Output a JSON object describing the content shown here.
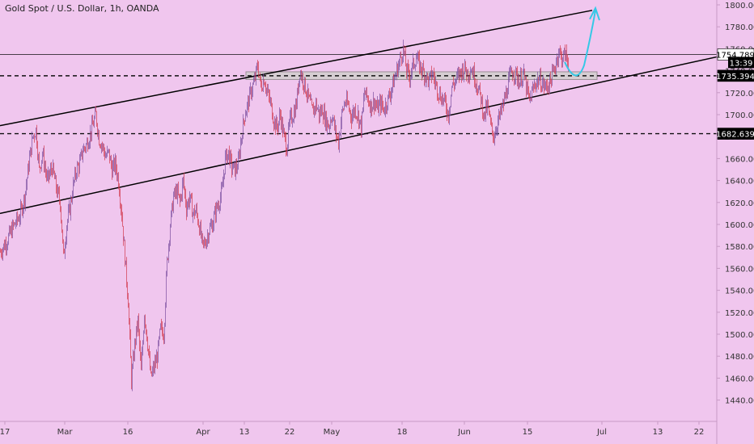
{
  "header": {
    "title": "Gold Spot / U.S. Dollar, 1h, OANDA"
  },
  "chart_data": {
    "type": "line",
    "symbol": "XAUUSD",
    "yaxis": {
      "ticks": [
        "1800.000",
        "1780.000",
        "1760.000",
        "1740.000",
        "1720.000",
        "1700.000",
        "1680.000",
        "1660.000",
        "1640.000",
        "1620.000",
        "1600.000",
        "1580.000",
        "1560.000",
        "1540.000",
        "1520.000",
        "1500.000",
        "1480.000",
        "1460.000",
        "1440.000"
      ],
      "ylim": [
        1428,
        1804
      ]
    },
    "xaxis": {
      "ticks": [
        "17",
        "Mar",
        "16",
        "Apr",
        "13",
        "22",
        "May",
        "18",
        "Jun",
        "15",
        "Jul",
        "13",
        "22"
      ]
    },
    "price_path": [
      [
        0,
        1575
      ],
      [
        8,
        1585
      ],
      [
        16,
        1598
      ],
      [
        24,
        1608
      ],
      [
        30,
        1625
      ],
      [
        36,
        1660
      ],
      [
        40,
        1680
      ],
      [
        44,
        1686
      ],
      [
        48,
        1650
      ],
      [
        52,
        1665
      ],
      [
        58,
        1640
      ],
      [
        64,
        1652
      ],
      [
        70,
        1630
      ],
      [
        74,
        1620
      ],
      [
        78,
        1570
      ],
      [
        82,
        1600
      ],
      [
        86,
        1615
      ],
      [
        90,
        1635
      ],
      [
        94,
        1650
      ],
      [
        98,
        1655
      ],
      [
        102,
        1668
      ],
      [
        106,
        1672
      ],
      [
        110,
        1680
      ],
      [
        114,
        1690
      ],
      [
        118,
        1700
      ],
      [
        122,
        1678
      ],
      [
        126,
        1672
      ],
      [
        130,
        1662
      ],
      [
        134,
        1665
      ],
      [
        138,
        1650
      ],
      [
        142,
        1655
      ],
      [
        146,
        1640
      ],
      [
        150,
        1610
      ],
      [
        154,
        1570
      ],
      [
        158,
        1530
      ],
      [
        162,
        1458
      ],
      [
        166,
        1490
      ],
      [
        170,
        1512
      ],
      [
        174,
        1465
      ],
      [
        178,
        1520
      ],
      [
        182,
        1492
      ],
      [
        186,
        1460
      ],
      [
        190,
        1470
      ],
      [
        194,
        1480
      ],
      [
        198,
        1505
      ],
      [
        202,
        1500
      ],
      [
        206,
        1565
      ],
      [
        210,
        1600
      ],
      [
        214,
        1625
      ],
      [
        218,
        1630
      ],
      [
        222,
        1620
      ],
      [
        226,
        1640
      ],
      [
        230,
        1615
      ],
      [
        234,
        1625
      ],
      [
        238,
        1610
      ],
      [
        242,
        1612
      ],
      [
        246,
        1598
      ],
      [
        250,
        1580
      ],
      [
        254,
        1585
      ],
      [
        258,
        1595
      ],
      [
        262,
        1600
      ],
      [
        266,
        1612
      ],
      [
        270,
        1620
      ],
      [
        274,
        1630
      ],
      [
        278,
        1660
      ],
      [
        282,
        1665
      ],
      [
        286,
        1652
      ],
      [
        290,
        1650
      ],
      [
        294,
        1655
      ],
      [
        298,
        1680
      ],
      [
        302,
        1700
      ],
      [
        306,
        1710
      ],
      [
        310,
        1722
      ],
      [
        314,
        1730
      ],
      [
        318,
        1745
      ],
      [
        322,
        1725
      ],
      [
        326,
        1733
      ],
      [
        330,
        1720
      ],
      [
        334,
        1710
      ],
      [
        338,
        1695
      ],
      [
        342,
        1688
      ],
      [
        346,
        1700
      ],
      [
        350,
        1682
      ],
      [
        354,
        1670
      ],
      [
        358,
        1695
      ],
      [
        362,
        1700
      ],
      [
        366,
        1710
      ],
      [
        370,
        1740
      ],
      [
        374,
        1732
      ],
      [
        378,
        1722
      ],
      [
        382,
        1712
      ],
      [
        386,
        1702
      ],
      [
        390,
        1710
      ],
      [
        394,
        1700
      ],
      [
        398,
        1705
      ],
      [
        402,
        1695
      ],
      [
        406,
        1690
      ],
      [
        410,
        1700
      ],
      [
        414,
        1685
      ],
      [
        418,
        1675
      ],
      [
        422,
        1700
      ],
      [
        426,
        1712
      ],
      [
        430,
        1708
      ],
      [
        434,
        1698
      ],
      [
        438,
        1705
      ],
      [
        442,
        1700
      ],
      [
        446,
        1688
      ],
      [
        450,
        1720
      ],
      [
        454,
        1715
      ],
      [
        458,
        1708
      ],
      [
        462,
        1712
      ],
      [
        466,
        1705
      ],
      [
        470,
        1710
      ],
      [
        474,
        1705
      ],
      [
        478,
        1712
      ],
      [
        482,
        1720
      ],
      [
        486,
        1730
      ],
      [
        490,
        1740
      ],
      [
        494,
        1750
      ],
      [
        498,
        1760
      ],
      [
        502,
        1740
      ],
      [
        506,
        1735
      ],
      [
        510,
        1745
      ],
      [
        514,
        1752
      ],
      [
        518,
        1745
      ],
      [
        522,
        1740
      ],
      [
        526,
        1735
      ],
      [
        530,
        1730
      ],
      [
        534,
        1738
      ],
      [
        538,
        1728
      ],
      [
        542,
        1720
      ],
      [
        546,
        1715
      ],
      [
        550,
        1710
      ],
      [
        554,
        1700
      ],
      [
        558,
        1725
      ],
      [
        562,
        1730
      ],
      [
        566,
        1735
      ],
      [
        570,
        1740
      ],
      [
        574,
        1742
      ],
      [
        578,
        1738
      ],
      [
        582,
        1742
      ],
      [
        586,
        1735
      ],
      [
        590,
        1725
      ],
      [
        594,
        1715
      ],
      [
        598,
        1698
      ],
      [
        602,
        1708
      ],
      [
        606,
        1690
      ],
      [
        610,
        1680
      ],
      [
        614,
        1692
      ],
      [
        618,
        1700
      ],
      [
        622,
        1710
      ],
      [
        626,
        1722
      ],
      [
        630,
        1735
      ],
      [
        634,
        1740
      ],
      [
        638,
        1735
      ],
      [
        642,
        1730
      ],
      [
        646,
        1738
      ],
      [
        650,
        1725
      ],
      [
        654,
        1712
      ],
      [
        658,
        1722
      ],
      [
        662,
        1730
      ],
      [
        666,
        1732
      ],
      [
        670,
        1728
      ],
      [
        674,
        1725
      ],
      [
        678,
        1728
      ],
      [
        682,
        1735
      ],
      [
        686,
        1745
      ],
      [
        690,
        1758
      ],
      [
        694,
        1752
      ],
      [
        698,
        1755
      ],
      [
        702,
        1748
      ]
    ],
    "channel_upper": [
      [
        0,
        1690
      ],
      [
        732,
        1795
      ]
    ],
    "channel_lower": [
      [
        0,
        1610
      ],
      [
        932,
        1760
      ]
    ],
    "horizontal_levels": [
      {
        "price": 1754.789,
        "style": "solid",
        "label": "1754.789"
      },
      {
        "price": 1735.394,
        "style": "dashed",
        "label": "1735.394"
      },
      {
        "price": 1682.639,
        "style": "dashed",
        "label": "1682.639"
      }
    ],
    "last_price_badge": {
      "label": "13:39"
    },
    "zone": {
      "top": 1739,
      "bottom": 1732
    },
    "projection_arrow": {
      "color": "#35c8e6"
    },
    "colors": {
      "background": "#f0c6ee",
      "candle_up": "#7a4fa0",
      "candle_down": "#d2384c",
      "zone_fill": "#d6cdd2",
      "zone_border": "#9b8f96",
      "line": "#000000"
    }
  }
}
